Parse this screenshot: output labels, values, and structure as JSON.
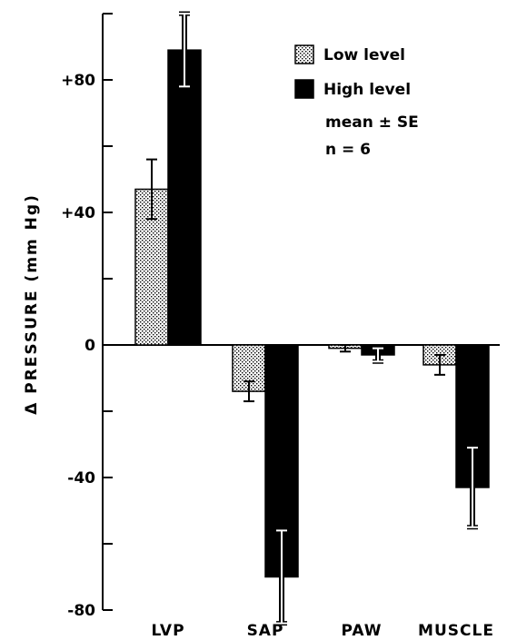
{
  "chart_data": {
    "type": "bar",
    "ylabel": "Δ PRESSURE (mm Hg)",
    "ylim": [
      -80,
      100
    ],
    "yticks": [
      {
        "value": 80,
        "label": "+80"
      },
      {
        "value": 40,
        "label": "+40"
      },
      {
        "value": 0,
        "label": "0"
      },
      {
        "value": -40,
        "label": "-40"
      },
      {
        "value": -80,
        "label": "-80"
      }
    ],
    "categories": [
      "LVP",
      "SAP",
      "PAW",
      "MUSCLE"
    ],
    "series": [
      {
        "name": "Low level",
        "pattern": "dotted",
        "values": [
          47,
          -14,
          -1,
          -6
        ],
        "se": [
          9,
          3,
          1,
          3
        ]
      },
      {
        "name": "High level",
        "pattern": "solid",
        "values": [
          89,
          -70,
          -3,
          -43
        ],
        "se": [
          11,
          14,
          2,
          12
        ]
      }
    ],
    "annotations": [
      "mean ± SE",
      "n = 6"
    ],
    "legend_position": "top-right"
  }
}
